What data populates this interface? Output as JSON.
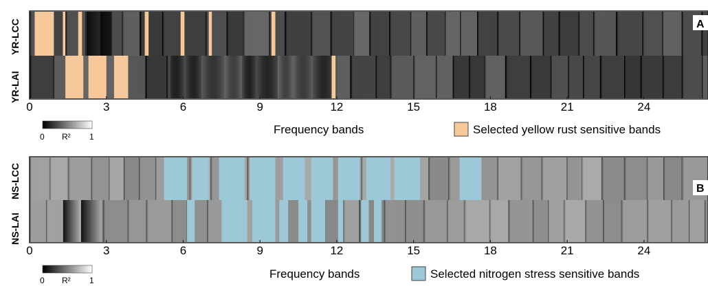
{
  "colors": {
    "yellow_rust_highlight": "#f7c99a",
    "nitrogen_highlight": "#9cc8d8",
    "dark": "#0a0a0a",
    "light": "#f4f4f4"
  },
  "chart_data": [
    {
      "type": "heatmap",
      "panel_letter": "A",
      "rows": [
        "YR-LCC",
        "YR-LAI"
      ],
      "xlabel": "Frequency bands",
      "xticks": [
        0,
        3,
        6,
        9,
        12,
        15,
        18,
        21,
        24
      ],
      "xlim": [
        0,
        26.5
      ],
      "colorbar": {
        "label": "R²",
        "min_label": "0",
        "max_label": "1"
      },
      "legend": {
        "label": "Selected yellow rust sensitive bands",
        "color": "#f7c99a"
      },
      "highlights": [
        {
          "row": "YR-LCC",
          "ranges": [
            [
              0.2,
              0.95
            ],
            [
              1.3,
              1.4
            ],
            [
              1.9,
              2.05
            ],
            [
              4.5,
              4.65
            ],
            [
              5.9,
              6.05
            ],
            [
              7.0,
              7.12
            ],
            [
              9.45,
              9.6
            ]
          ]
        },
        {
          "row": "YR-LAI",
          "ranges": [
            [
              1.4,
              2.1
            ],
            [
              2.3,
              3.0
            ],
            [
              3.3,
              3.85
            ],
            [
              11.8,
              11.95
            ]
          ]
        }
      ]
    },
    {
      "type": "heatmap",
      "panel_letter": "B",
      "rows": [
        "NS-LCC",
        "NS-LAI"
      ],
      "xlabel": "Frequency bands",
      "xticks": [
        0,
        3,
        6,
        9,
        12,
        15,
        18,
        21,
        24
      ],
      "xlim": [
        0,
        26.5
      ],
      "colorbar": {
        "label": "R²",
        "min_label": "0",
        "max_label": "1"
      },
      "legend": {
        "label": "Selected nitrogen stress sensitive bands",
        "color": "#9cc8d8"
      },
      "highlights": [
        {
          "row": "NS-LCC",
          "ranges": [
            [
              5.25,
              6.15
            ],
            [
              6.35,
              7.0
            ],
            [
              7.4,
              8.4
            ],
            [
              8.6,
              9.6
            ],
            [
              9.9,
              10.75
            ],
            [
              11.0,
              11.85
            ],
            [
              12.05,
              12.9
            ],
            [
              13.15,
              14.1
            ],
            [
              14.25,
              15.25
            ],
            [
              16.8,
              17.65
            ]
          ]
        },
        {
          "row": "NS-LAI",
          "ranges": [
            [
              6.15,
              6.45
            ],
            [
              7.5,
              8.5
            ],
            [
              8.7,
              9.6
            ],
            [
              9.75,
              10.1
            ],
            [
              10.5,
              10.85
            ],
            [
              11.0,
              11.55
            ],
            [
              12.05,
              12.25
            ],
            [
              12.95,
              13.25
            ],
            [
              13.45,
              13.75
            ]
          ]
        }
      ]
    }
  ]
}
